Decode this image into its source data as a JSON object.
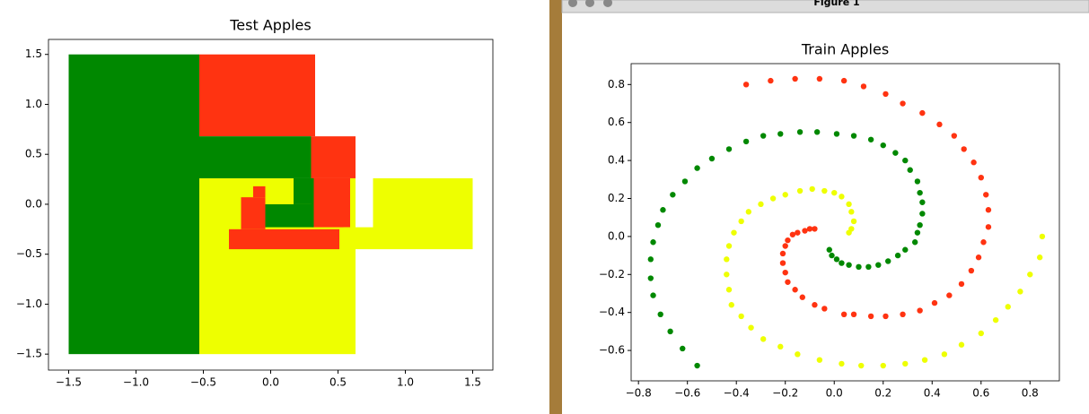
{
  "window": {
    "title": "Figure 1"
  },
  "chart_data": [
    {
      "type": "region",
      "title": "Test Apples",
      "xlim": [
        -1.65,
        1.65
      ],
      "ylim": [
        -1.66,
        1.65
      ],
      "xticks": [
        {
          "value": -1.5,
          "label": "−1.5"
        },
        {
          "value": -1.0,
          "label": "−1.0"
        },
        {
          "value": -0.5,
          "label": "−0.5"
        },
        {
          "value": 0,
          "label": "0.0"
        },
        0.5,
        {
          "value": 1.0,
          "label": "1.0"
        },
        1.5
      ],
      "yticks": [
        {
          "value": -1.5,
          "label": "−1.5"
        },
        {
          "value": -1.0,
          "label": "−1.0"
        },
        {
          "value": -0.5,
          "label": "−0.5"
        },
        {
          "value": 0,
          "label": "0.0"
        },
        0.5,
        {
          "value": 1.0,
          "label": "1.0"
        },
        1.5
      ],
      "regions": [
        {
          "color": "#008800",
          "x": [
            -1.5,
            -0.53
          ],
          "y": [
            -1.5,
            1.5
          ]
        },
        {
          "color": "#eeff00",
          "x": [
            -0.53,
            0.63
          ],
          "y": [
            -1.5,
            0.26
          ]
        },
        {
          "color": "#ff3311",
          "x": [
            -0.53,
            0.33
          ],
          "y": [
            0.68,
            1.5
          ]
        },
        {
          "color": "#008800",
          "x": [
            -0.53,
            0.3
          ],
          "y": [
            0.26,
            0.68
          ]
        },
        {
          "color": "#ff3311",
          "x": [
            0.3,
            0.63
          ],
          "y": [
            0.26,
            0.68
          ]
        },
        {
          "color": "#ff3311",
          "x": [
            0.3,
            0.59
          ],
          "y": [
            -0.23,
            0.26
          ]
        },
        {
          "color": "#eeff00",
          "x": [
            0.76,
            1.5
          ],
          "y": [
            -0.45,
            0.26
          ]
        },
        {
          "color": "#eeff00",
          "x": [
            0.54,
            0.76
          ],
          "y": [
            -0.45,
            -0.23
          ]
        },
        {
          "color": "#ff3311",
          "x": [
            -0.31,
            0.51
          ],
          "y": [
            -0.45,
            -0.25
          ]
        },
        {
          "color": "#ff3311",
          "x": [
            -0.22,
            -0.04
          ],
          "y": [
            -0.25,
            0.07
          ]
        },
        {
          "color": "#ff3311",
          "x": [
            -0.13,
            -0.04
          ],
          "y": [
            0.07,
            0.18
          ]
        },
        {
          "color": "#008800",
          "x": [
            -0.04,
            0.32
          ],
          "y": [
            -0.23,
            0.0
          ]
        },
        {
          "color": "#008800",
          "x": [
            0.17,
            0.32
          ],
          "y": [
            0.0,
            0.26
          ]
        }
      ]
    },
    {
      "type": "scatter",
      "title": "Train Apples",
      "xlim": [
        -0.83,
        0.92
      ],
      "ylim": [
        -0.76,
        0.91
      ],
      "xticks": [
        {
          "value": -0.8,
          "label": "−0.8"
        },
        {
          "value": -0.6,
          "label": "−0.6"
        },
        {
          "value": -0.4,
          "label": "−0.4"
        },
        {
          "value": -0.2,
          "label": "−0.2"
        },
        {
          "value": 0,
          "label": "0.0"
        },
        0.2,
        0.4,
        0.6,
        0.8
      ],
      "yticks": [
        {
          "value": -0.6,
          "label": "−0.6"
        },
        {
          "value": -0.4,
          "label": "−0.4"
        },
        {
          "value": -0.2,
          "label": "−0.2"
        },
        {
          "value": 0,
          "label": "0.0"
        },
        0.2,
        0.4,
        0.6,
        0.8
      ],
      "series": [
        {
          "color": "#ff3311",
          "x": [
            -0.36,
            -0.26,
            -0.16,
            -0.06,
            0.04,
            0.12,
            0.21,
            0.28,
            0.36,
            0.43,
            0.49,
            0.53,
            0.57,
            0.6,
            0.62,
            0.63,
            0.63,
            0.61,
            0.59,
            0.56,
            0.52,
            0.47,
            0.41,
            0.35,
            0.28,
            0.21,
            0.15,
            0.08,
            0.04,
            -0.04,
            -0.08,
            -0.13,
            -0.16,
            -0.19,
            -0.2,
            -0.21,
            -0.21,
            -0.2,
            -0.19,
            -0.17,
            -0.15,
            -0.12,
            -0.1,
            -0.08
          ],
          "y": [
            0.8,
            0.82,
            0.83,
            0.83,
            0.82,
            0.79,
            0.75,
            0.7,
            0.65,
            0.59,
            0.53,
            0.46,
            0.39,
            0.31,
            0.22,
            0.14,
            0.05,
            -0.03,
            -0.11,
            -0.18,
            -0.25,
            -0.31,
            -0.35,
            -0.39,
            -0.41,
            -0.42,
            -0.42,
            -0.41,
            -0.41,
            -0.38,
            -0.36,
            -0.32,
            -0.28,
            -0.24,
            -0.19,
            -0.14,
            -0.09,
            -0.05,
            -0.02,
            0.01,
            0.02,
            0.03,
            0.04,
            0.04
          ]
        },
        {
          "color": "#008800",
          "x": [
            -0.56,
            -0.62,
            -0.67,
            -0.71,
            -0.74,
            -0.75,
            -0.75,
            -0.74,
            -0.72,
            -0.7,
            -0.66,
            -0.61,
            -0.56,
            -0.5,
            -0.43,
            -0.36,
            -0.29,
            -0.22,
            -0.14,
            -0.07,
            0.01,
            0.08,
            0.15,
            0.2,
            0.25,
            0.29,
            0.31,
            0.34,
            0.35,
            0.36,
            0.36,
            0.35,
            0.34,
            0.33,
            0.29,
            0.26,
            0.22,
            0.18,
            0.14,
            0.1,
            0.06,
            0.03,
            0.01,
            -0.01,
            -0.02
          ],
          "y": [
            -0.68,
            -0.59,
            -0.5,
            -0.41,
            -0.31,
            -0.22,
            -0.12,
            -0.03,
            0.06,
            0.14,
            0.22,
            0.29,
            0.36,
            0.41,
            0.46,
            0.5,
            0.53,
            0.54,
            0.55,
            0.55,
            0.54,
            0.53,
            0.51,
            0.48,
            0.44,
            0.4,
            0.35,
            0.29,
            0.23,
            0.18,
            0.12,
            0.06,
            0.02,
            -0.03,
            -0.07,
            -0.1,
            -0.13,
            -0.15,
            -0.16,
            -0.16,
            -0.15,
            -0.14,
            -0.12,
            -0.1,
            -0.07
          ]
        },
        {
          "color": "#eeff00",
          "x": [
            0.85,
            0.84,
            0.8,
            0.76,
            0.71,
            0.66,
            0.6,
            0.52,
            0.45,
            0.37,
            0.29,
            0.2,
            0.11,
            0.03,
            -0.06,
            -0.15,
            -0.22,
            -0.29,
            -0.34,
            -0.38,
            -0.42,
            -0.43,
            -0.44,
            -0.44,
            -0.43,
            -0.41,
            -0.38,
            -0.35,
            -0.3,
            -0.25,
            -0.2,
            -0.14,
            -0.09,
            -0.04,
            0.0,
            0.03,
            0.06,
            0.07,
            0.08,
            0.07,
            0.06
          ],
          "y": [
            0.0,
            -0.11,
            -0.2,
            -0.29,
            -0.37,
            -0.44,
            -0.51,
            -0.57,
            -0.62,
            -0.65,
            -0.67,
            -0.68,
            -0.68,
            -0.67,
            -0.65,
            -0.62,
            -0.58,
            -0.54,
            -0.48,
            -0.42,
            -0.36,
            -0.28,
            -0.2,
            -0.12,
            -0.05,
            0.02,
            0.08,
            0.13,
            0.17,
            0.2,
            0.22,
            0.24,
            0.25,
            0.24,
            0.23,
            0.21,
            0.17,
            0.13,
            0.08,
            0.04,
            0.02
          ]
        }
      ]
    }
  ]
}
